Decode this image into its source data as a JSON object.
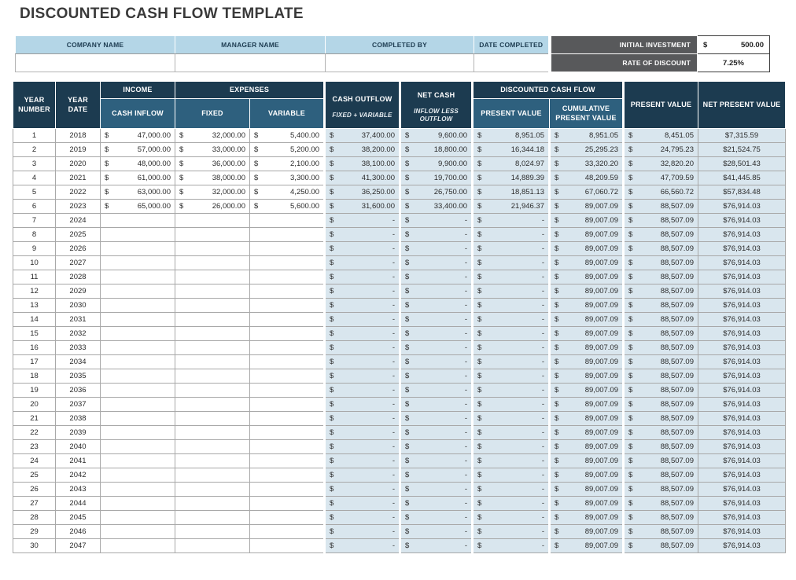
{
  "page": {
    "title": "DISCOUNTED CASH FLOW TEMPLATE"
  },
  "info_bar": {
    "fields": [
      {
        "label": "COMPANY NAME",
        "value": ""
      },
      {
        "label": "MANAGER NAME",
        "value": ""
      },
      {
        "label": "COMPLETED BY",
        "value": ""
      },
      {
        "label": "DATE COMPLETED",
        "value": ""
      }
    ],
    "initial_investment": {
      "label": "INITIAL INVESTMENT",
      "currency": "$",
      "value": "500.00"
    },
    "rate_of_discount": {
      "label": "RATE OF DISCOUNT",
      "value": "7.25%"
    }
  },
  "table": {
    "currency_symbol": "$",
    "headers": {
      "year_number": "YEAR NUMBER",
      "year_date": "YEAR DATE",
      "income": "INCOME",
      "cash_inflow": "CASH INFLOW",
      "expenses": "EXPENSES",
      "fixed": "FIXED",
      "variable": "VARIABLE",
      "cash_outflow": "CASH OUTFLOW",
      "cash_outflow_sub": "FIXED + VARIABLE",
      "net_cash": "NET CASH",
      "net_cash_sub": "INFLOW LESS OUTFLOW",
      "dcf": "DISCOUNTED CASH FLOW",
      "dcf_present_value": "PRESENT VALUE",
      "dcf_cumulative": "CUMULATIVE PRESENT VALUE",
      "present_value": "PRESENT VALUE",
      "net_present_value": "NET PRESENT VALUE"
    },
    "rows": [
      {
        "n": "1",
        "year": "2018",
        "inflow": "47,000.00",
        "fixed": "32,000.00",
        "variable": "5,400.00",
        "outflow": "37,400.00",
        "net": "9,600.00",
        "pv": "8,951.05",
        "cum": "8,951.05",
        "present": "8,451.05",
        "npv": "$7,315.59"
      },
      {
        "n": "2",
        "year": "2019",
        "inflow": "57,000.00",
        "fixed": "33,000.00",
        "variable": "5,200.00",
        "outflow": "38,200.00",
        "net": "18,800.00",
        "pv": "16,344.18",
        "cum": "25,295.23",
        "present": "24,795.23",
        "npv": "$21,524.75"
      },
      {
        "n": "3",
        "year": "2020",
        "inflow": "48,000.00",
        "fixed": "36,000.00",
        "variable": "2,100.00",
        "outflow": "38,100.00",
        "net": "9,900.00",
        "pv": "8,024.97",
        "cum": "33,320.20",
        "present": "32,820.20",
        "npv": "$28,501.43"
      },
      {
        "n": "4",
        "year": "2021",
        "inflow": "61,000.00",
        "fixed": "38,000.00",
        "variable": "3,300.00",
        "outflow": "41,300.00",
        "net": "19,700.00",
        "pv": "14,889.39",
        "cum": "48,209.59",
        "present": "47,709.59",
        "npv": "$41,445.85"
      },
      {
        "n": "5",
        "year": "2022",
        "inflow": "63,000.00",
        "fixed": "32,000.00",
        "variable": "4,250.00",
        "outflow": "36,250.00",
        "net": "26,750.00",
        "pv": "18,851.13",
        "cum": "67,060.72",
        "present": "66,560.72",
        "npv": "$57,834.48"
      },
      {
        "n": "6",
        "year": "2023",
        "inflow": "65,000.00",
        "fixed": "26,000.00",
        "variable": "5,600.00",
        "outflow": "31,600.00",
        "net": "33,400.00",
        "pv": "21,946.37",
        "cum": "89,007.09",
        "present": "88,507.09",
        "npv": "$76,914.03"
      },
      {
        "n": "7",
        "year": "2024",
        "inflow": null,
        "fixed": null,
        "variable": null,
        "outflow": "-",
        "net": "-",
        "pv": "-",
        "cum": "89,007.09",
        "present": "88,507.09",
        "npv": "$76,914.03"
      },
      {
        "n": "8",
        "year": "2025",
        "inflow": null,
        "fixed": null,
        "variable": null,
        "outflow": "-",
        "net": "-",
        "pv": "-",
        "cum": "89,007.09",
        "present": "88,507.09",
        "npv": "$76,914.03"
      },
      {
        "n": "9",
        "year": "2026",
        "inflow": null,
        "fixed": null,
        "variable": null,
        "outflow": "-",
        "net": "-",
        "pv": "-",
        "cum": "89,007.09",
        "present": "88,507.09",
        "npv": "$76,914.03"
      },
      {
        "n": "10",
        "year": "2027",
        "inflow": null,
        "fixed": null,
        "variable": null,
        "outflow": "-",
        "net": "-",
        "pv": "-",
        "cum": "89,007.09",
        "present": "88,507.09",
        "npv": "$76,914.03"
      },
      {
        "n": "11",
        "year": "2028",
        "inflow": null,
        "fixed": null,
        "variable": null,
        "outflow": "-",
        "net": "-",
        "pv": "-",
        "cum": "89,007.09",
        "present": "88,507.09",
        "npv": "$76,914.03"
      },
      {
        "n": "12",
        "year": "2029",
        "inflow": null,
        "fixed": null,
        "variable": null,
        "outflow": "-",
        "net": "-",
        "pv": "-",
        "cum": "89,007.09",
        "present": "88,507.09",
        "npv": "$76,914.03"
      },
      {
        "n": "13",
        "year": "2030",
        "inflow": null,
        "fixed": null,
        "variable": null,
        "outflow": "-",
        "net": "-",
        "pv": "-",
        "cum": "89,007.09",
        "present": "88,507.09",
        "npv": "$76,914.03"
      },
      {
        "n": "14",
        "year": "2031",
        "inflow": null,
        "fixed": null,
        "variable": null,
        "outflow": "-",
        "net": "-",
        "pv": "-",
        "cum": "89,007.09",
        "present": "88,507.09",
        "npv": "$76,914.03"
      },
      {
        "n": "15",
        "year": "2032",
        "inflow": null,
        "fixed": null,
        "variable": null,
        "outflow": "-",
        "net": "-",
        "pv": "-",
        "cum": "89,007.09",
        "present": "88,507.09",
        "npv": "$76,914.03"
      },
      {
        "n": "16",
        "year": "2033",
        "inflow": null,
        "fixed": null,
        "variable": null,
        "outflow": "-",
        "net": "-",
        "pv": "-",
        "cum": "89,007.09",
        "present": "88,507.09",
        "npv": "$76,914.03"
      },
      {
        "n": "17",
        "year": "2034",
        "inflow": null,
        "fixed": null,
        "variable": null,
        "outflow": "-",
        "net": "-",
        "pv": "-",
        "cum": "89,007.09",
        "present": "88,507.09",
        "npv": "$76,914.03"
      },
      {
        "n": "18",
        "year": "2035",
        "inflow": null,
        "fixed": null,
        "variable": null,
        "outflow": "-",
        "net": "-",
        "pv": "-",
        "cum": "89,007.09",
        "present": "88,507.09",
        "npv": "$76,914.03"
      },
      {
        "n": "19",
        "year": "2036",
        "inflow": null,
        "fixed": null,
        "variable": null,
        "outflow": "-",
        "net": "-",
        "pv": "-",
        "cum": "89,007.09",
        "present": "88,507.09",
        "npv": "$76,914.03"
      },
      {
        "n": "20",
        "year": "2037",
        "inflow": null,
        "fixed": null,
        "variable": null,
        "outflow": "-",
        "net": "-",
        "pv": "-",
        "cum": "89,007.09",
        "present": "88,507.09",
        "npv": "$76,914.03"
      },
      {
        "n": "21",
        "year": "2038",
        "inflow": null,
        "fixed": null,
        "variable": null,
        "outflow": "-",
        "net": "-",
        "pv": "-",
        "cum": "89,007.09",
        "present": "88,507.09",
        "npv": "$76,914.03"
      },
      {
        "n": "22",
        "year": "2039",
        "inflow": null,
        "fixed": null,
        "variable": null,
        "outflow": "-",
        "net": "-",
        "pv": "-",
        "cum": "89,007.09",
        "present": "88,507.09",
        "npv": "$76,914.03"
      },
      {
        "n": "23",
        "year": "2040",
        "inflow": null,
        "fixed": null,
        "variable": null,
        "outflow": "-",
        "net": "-",
        "pv": "-",
        "cum": "89,007.09",
        "present": "88,507.09",
        "npv": "$76,914.03"
      },
      {
        "n": "24",
        "year": "2041",
        "inflow": null,
        "fixed": null,
        "variable": null,
        "outflow": "-",
        "net": "-",
        "pv": "-",
        "cum": "89,007.09",
        "present": "88,507.09",
        "npv": "$76,914.03"
      },
      {
        "n": "25",
        "year": "2042",
        "inflow": null,
        "fixed": null,
        "variable": null,
        "outflow": "-",
        "net": "-",
        "pv": "-",
        "cum": "89,007.09",
        "present": "88,507.09",
        "npv": "$76,914.03"
      },
      {
        "n": "26",
        "year": "2043",
        "inflow": null,
        "fixed": null,
        "variable": null,
        "outflow": "-",
        "net": "-",
        "pv": "-",
        "cum": "89,007.09",
        "present": "88,507.09",
        "npv": "$76,914.03"
      },
      {
        "n": "27",
        "year": "2044",
        "inflow": null,
        "fixed": null,
        "variable": null,
        "outflow": "-",
        "net": "-",
        "pv": "-",
        "cum": "89,007.09",
        "present": "88,507.09",
        "npv": "$76,914.03"
      },
      {
        "n": "28",
        "year": "2045",
        "inflow": null,
        "fixed": null,
        "variable": null,
        "outflow": "-",
        "net": "-",
        "pv": "-",
        "cum": "89,007.09",
        "present": "88,507.09",
        "npv": "$76,914.03"
      },
      {
        "n": "29",
        "year": "2046",
        "inflow": null,
        "fixed": null,
        "variable": null,
        "outflow": "-",
        "net": "-",
        "pv": "-",
        "cum": "89,007.09",
        "present": "88,507.09",
        "npv": "$76,914.03"
      },
      {
        "n": "30",
        "year": "2047",
        "inflow": null,
        "fixed": null,
        "variable": null,
        "outflow": "-",
        "net": "-",
        "pv": "-",
        "cum": "89,007.09",
        "present": "88,507.09",
        "npv": "$76,914.03"
      }
    ]
  }
}
